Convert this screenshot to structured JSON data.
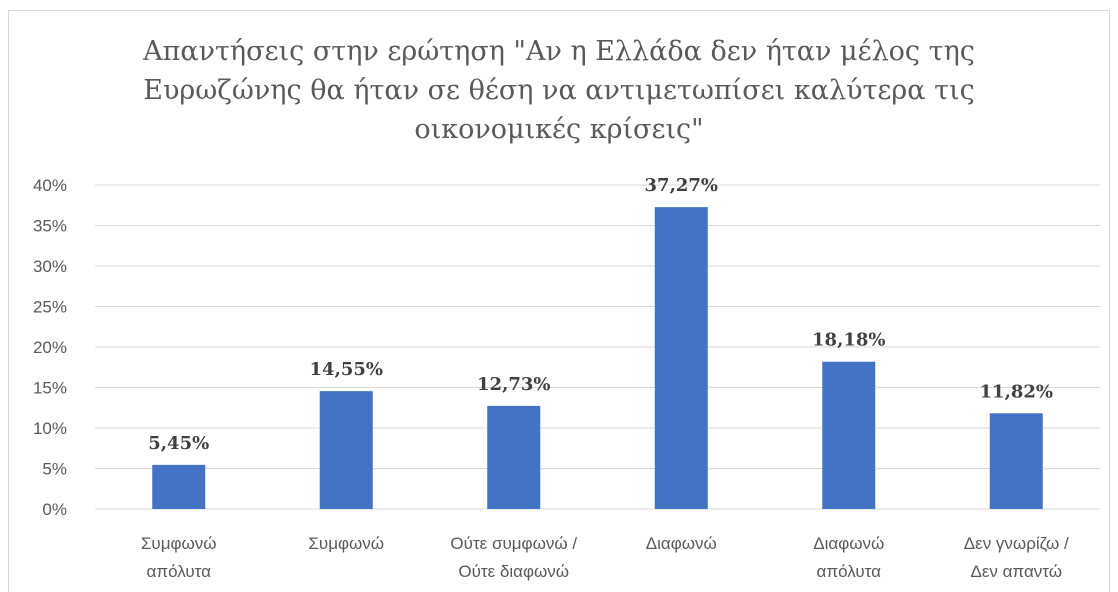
{
  "chart_data": {
    "type": "bar",
    "title_lines": [
      "Απαντήσεις στην ερώτηση \"Αν η Ελλάδα δεν ήταν μέλος της",
      "Ευρωζώνης θα ήταν σε θέση να αντιμετωπίσει καλύτερα τις",
      "οικονομικές κρίσεις\""
    ],
    "categories": [
      [
        "Συμφωνώ",
        "απόλυτα"
      ],
      [
        "Συμφωνώ"
      ],
      [
        "Ούτε συμφωνώ /",
        "Ούτε διαφωνώ"
      ],
      [
        "Διαφωνώ"
      ],
      [
        "Διαφωνώ",
        "απόλυτα"
      ],
      [
        "Δεν γνωρίζω /",
        "Δεν απαντώ"
      ]
    ],
    "values": [
      5.45,
      14.55,
      12.73,
      37.27,
      18.18,
      11.82
    ],
    "data_labels": [
      "5,45%",
      "14,55%",
      "12,73%",
      "37,27%",
      "18,18%",
      "11,82%"
    ],
    "y_ticks": [
      "0%",
      "5%",
      "10%",
      "15%",
      "20%",
      "25%",
      "30%",
      "35%",
      "40%"
    ],
    "ylim": [
      0,
      40
    ],
    "y_step": 5,
    "bar_color": "#4472c4",
    "grid": true,
    "legend": "none"
  }
}
